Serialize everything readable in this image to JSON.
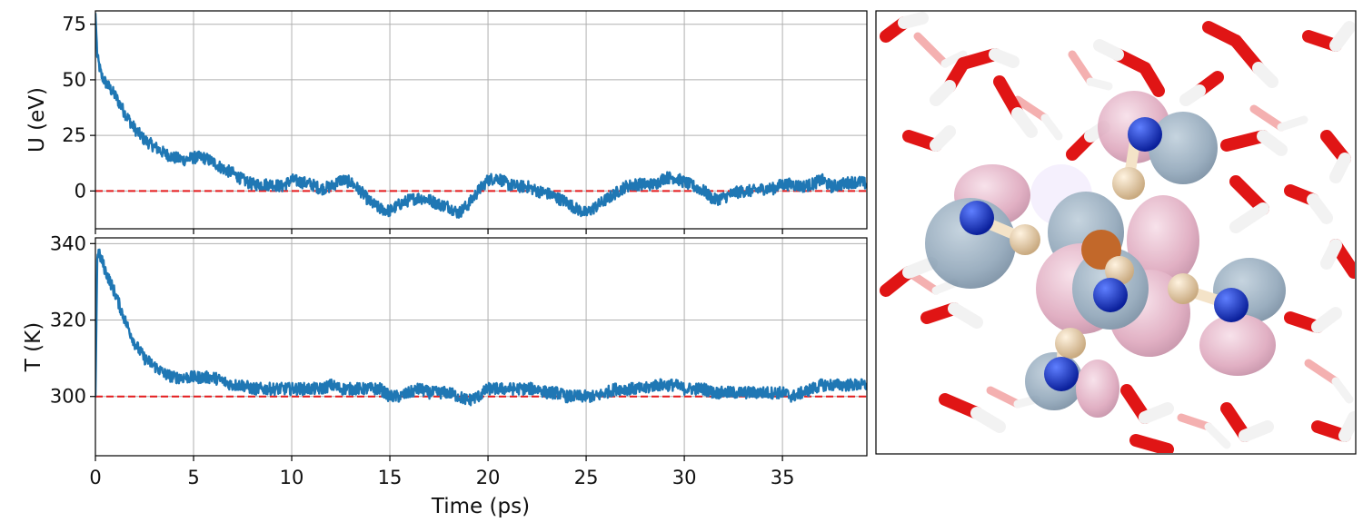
{
  "chart_data": [
    {
      "type": "line",
      "panel": "top",
      "title": "",
      "xlabel": "",
      "ylabel": "U (eV)",
      "xlim": [
        0,
        39.3
      ],
      "ylim": [
        -17,
        81
      ],
      "xticks": [
        0,
        5,
        10,
        15,
        20,
        25,
        30,
        35
      ],
      "yticks": [
        0,
        25,
        50,
        75
      ],
      "ytick_labels": [
        "0",
        "25",
        "50",
        "75"
      ],
      "grid": true,
      "reference_line": {
        "y": 0,
        "color": "#e41a1c",
        "style": "dashed"
      },
      "series": [
        {
          "color": "#1f77b4",
          "x": [
            0,
            0.1,
            0.3,
            0.5,
            1,
            1.5,
            2,
            2.5,
            3,
            3.5,
            4,
            4.5,
            5,
            5.5,
            6,
            6.5,
            7,
            7.5,
            8,
            8.5,
            9,
            9.5,
            10,
            10.5,
            11,
            11.5,
            12,
            12.5,
            13,
            13.5,
            14,
            14.5,
            15,
            15.5,
            16,
            16.5,
            17,
            17.5,
            18,
            18.5,
            19,
            19.5,
            20,
            20.5,
            21,
            21.5,
            22,
            22.5,
            23,
            23.5,
            24,
            24.5,
            25,
            25.5,
            26,
            26.5,
            27,
            27.5,
            28,
            28.5,
            29,
            29.5,
            30,
            30.5,
            31,
            31.5,
            32,
            32.5,
            33,
            33.5,
            34,
            34.5,
            35,
            35.5,
            36,
            36.5,
            37,
            37.5,
            38,
            38.5,
            39,
            39.3
          ],
          "y": [
            80,
            60,
            52,
            49,
            43,
            35,
            28,
            23,
            20,
            17,
            15,
            14,
            15,
            15,
            13,
            10,
            8,
            5,
            3,
            3,
            3,
            2,
            5,
            4,
            3,
            1,
            2,
            5,
            4,
            0,
            -5,
            -8,
            -9,
            -6,
            -4,
            -3,
            -4,
            -6,
            -7,
            -10,
            -6,
            0,
            5,
            6,
            3,
            2,
            2,
            0,
            -1,
            -3,
            -5,
            -8,
            -10,
            -7,
            -4,
            -1,
            2,
            3,
            3,
            3,
            6,
            6,
            4,
            2,
            0,
            -4,
            -3,
            -1,
            0,
            0,
            1,
            1,
            3,
            3,
            2,
            3,
            5,
            2,
            3,
            4,
            4,
            3
          ]
        }
      ]
    },
    {
      "type": "line",
      "panel": "bottom",
      "title": "",
      "xlabel": "Time (ps)",
      "ylabel": "T (K)",
      "xlim": [
        0,
        39.3
      ],
      "ylim": [
        284.5,
        341.5
      ],
      "xticks": [
        0,
        5,
        10,
        15,
        20,
        25,
        30,
        35
      ],
      "xtick_labels": [
        "0",
        "5",
        "10",
        "15",
        "20",
        "25",
        "30",
        "35"
      ],
      "yticks": [
        300,
        320,
        340
      ],
      "ytick_labels": [
        "300",
        "320",
        "340"
      ],
      "grid": true,
      "reference_line": {
        "y": 300,
        "color": "#e41a1c",
        "style": "dashed"
      },
      "series": [
        {
          "color": "#1f77b4",
          "x": [
            0,
            0.1,
            0.3,
            0.5,
            1,
            1.5,
            2,
            2.5,
            3,
            3.5,
            4,
            4.5,
            5,
            5.5,
            6,
            6.5,
            7,
            7.5,
            8,
            8.5,
            9,
            9.5,
            10,
            10.5,
            11,
            11.5,
            12,
            12.5,
            13,
            13.5,
            14,
            14.5,
            15,
            15.5,
            16,
            16.5,
            17,
            17.5,
            18,
            18.5,
            19,
            19.5,
            20,
            20.5,
            21,
            21.5,
            22,
            22.5,
            23,
            23.5,
            24,
            24.5,
            25,
            25.5,
            26,
            26.5,
            27,
            27.5,
            28,
            28.5,
            29,
            29.5,
            30,
            30.5,
            31,
            31.5,
            32,
            32.5,
            33,
            33.5,
            34,
            34.5,
            35,
            35.5,
            36,
            36.5,
            37,
            37.5,
            38,
            38.5,
            39,
            39.3
          ],
          "y": [
            300,
            338,
            336,
            333,
            327,
            320,
            314,
            310,
            308,
            306,
            305,
            305,
            305,
            305,
            305,
            304,
            303,
            303,
            302,
            302,
            302,
            302,
            302,
            302,
            302,
            302,
            303,
            302,
            302,
            302,
            302,
            302,
            300,
            300,
            301,
            302,
            301,
            301,
            301,
            300,
            299,
            300,
            302,
            302,
            302,
            302,
            302,
            302,
            301,
            301,
            300,
            300,
            300,
            300,
            301,
            302,
            302,
            302,
            302,
            303,
            303,
            303,
            302,
            302,
            302,
            301,
            301,
            301,
            301,
            301,
            301,
            301,
            301,
            300,
            301,
            302,
            303,
            303,
            303,
            303,
            303,
            303
          ]
        }
      ]
    }
  ]
}
